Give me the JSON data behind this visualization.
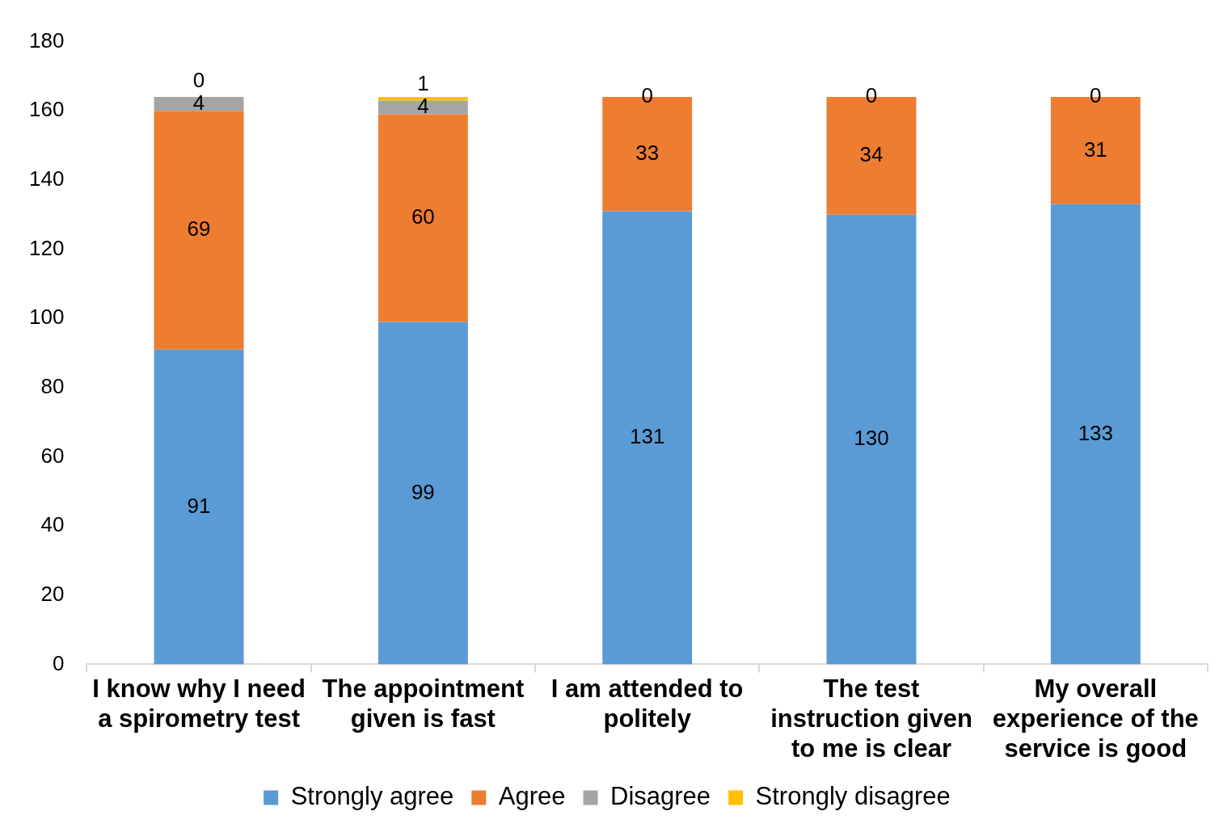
{
  "chart_data": {
    "type": "bar",
    "stacked": true,
    "categories": [
      "I know why I need a spirometry test",
      "The appointment given is fast",
      "I am attended to politely",
      "The test instruction given to me is clear",
      "My overall experience of the service is good"
    ],
    "series": [
      {
        "name": "Strongly agree",
        "color": "#5b9bd5",
        "values": [
          91,
          99,
          131,
          130,
          133
        ],
        "value_labels": [
          "91",
          "99",
          "131",
          "130",
          "133"
        ]
      },
      {
        "name": "Agree",
        "color": "#ed7d31",
        "values": [
          69,
          60,
          33,
          34,
          31
        ],
        "value_labels": [
          "69",
          "60",
          "33",
          "34",
          "31"
        ]
      },
      {
        "name": "Disagree",
        "color": "#a5a5a5",
        "values": [
          4,
          4,
          0,
          0,
          0
        ],
        "value_labels": [
          "4",
          "4",
          "0",
          "0",
          "0"
        ]
      },
      {
        "name": "Strongly disagree",
        "color": "#ffc000",
        "values": [
          0,
          1,
          0,
          0,
          0
        ],
        "value_labels": [
          "0",
          "1",
          null,
          null,
          null
        ]
      }
    ],
    "ylim": [
      0,
      180
    ],
    "yticks": [
      0,
      20,
      40,
      60,
      80,
      100,
      120,
      140,
      160,
      180
    ],
    "grid": false,
    "legend": "bottom"
  }
}
